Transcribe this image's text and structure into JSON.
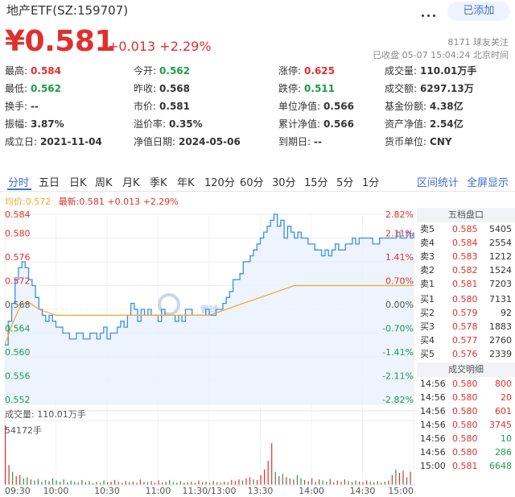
{
  "header": {
    "title": "地产ETF(SZ:159707)",
    "add_label": "已添加",
    "price": "¥0.581",
    "change": "+0.013 +2.29%",
    "followers": "8171 球友关注",
    "status": "已收盘 05-07 15:04:24 北京时间"
  },
  "quotes": [
    [
      {
        "label": "最高:",
        "value": "0.584",
        "color": "red"
      },
      {
        "label": "今开:",
        "value": "0.562",
        "color": "green"
      },
      {
        "label": "涨停:",
        "value": "0.625",
        "color": "red"
      },
      {
        "label": "成交量:",
        "value": "110.01万手",
        "color": ""
      }
    ],
    [
      {
        "label": "最低:",
        "value": "0.562",
        "color": "green"
      },
      {
        "label": "昨收:",
        "value": "0.568",
        "color": ""
      },
      {
        "label": "跌停:",
        "value": "0.511",
        "color": "green"
      },
      {
        "label": "成交额:",
        "value": "6297.13万",
        "color": ""
      }
    ],
    [
      {
        "label": "换手:",
        "value": "--",
        "color": ""
      },
      {
        "label": "市价:",
        "value": "0.581",
        "color": ""
      },
      {
        "label": "单位净值:",
        "value": "0.566",
        "color": ""
      },
      {
        "label": "基金份额:",
        "value": "4.38亿",
        "color": ""
      }
    ],
    [
      {
        "label": "振幅:",
        "value": "3.87%",
        "color": ""
      },
      {
        "label": "溢价率:",
        "value": "0.35%",
        "color": ""
      },
      {
        "label": "累计净值:",
        "value": "0.566",
        "color": ""
      },
      {
        "label": "资产净值:",
        "value": "2.54亿",
        "color": ""
      }
    ],
    [
      {
        "label": "成立日:",
        "value": "2021-11-04",
        "color": ""
      },
      {
        "label": "净值日期:",
        "value": "2024-05-06",
        "color": ""
      },
      {
        "label": "到期日:",
        "value": "--",
        "color": ""
      },
      {
        "label": "货币单位:",
        "value": "CNY",
        "color": ""
      }
    ]
  ],
  "tabs": [
    "分时",
    "五日",
    "日K",
    "周K",
    "月K",
    "季K",
    "年K",
    "120分",
    "60分",
    "30分",
    "15分",
    "5分",
    "1分"
  ],
  "tab_active": "分时",
  "tab_right": [
    "区间统计",
    "全屏显示"
  ],
  "legend": {
    "avg": "均价:0.572",
    "latest": "最新:0.581 +0.013 +2.29%"
  },
  "volume_label": "成交量: 110.01万手",
  "volume_max_label": "54172手",
  "watermark": "雪球",
  "orderbook": {
    "title": "五档盘口",
    "asks": [
      {
        "label": "卖5",
        "price": "0.585",
        "vol": "5405"
      },
      {
        "label": "卖4",
        "price": "0.584",
        "vol": "2554"
      },
      {
        "label": "卖3",
        "price": "0.583",
        "vol": "1212"
      },
      {
        "label": "卖2",
        "price": "0.582",
        "vol": "1524"
      },
      {
        "label": "卖1",
        "price": "0.581",
        "vol": "7203"
      }
    ],
    "bids": [
      {
        "label": "买1",
        "price": "0.580",
        "vol": "7131"
      },
      {
        "label": "买2",
        "price": "0.579",
        "vol": "92"
      },
      {
        "label": "买3",
        "price": "0.578",
        "vol": "1883"
      },
      {
        "label": "买4",
        "price": "0.577",
        "vol": "2760"
      },
      {
        "label": "买5",
        "price": "0.576",
        "vol": "2339"
      }
    ],
    "trades_title": "成交明细",
    "trades": [
      {
        "time": "14:56",
        "price": "0.580",
        "vol": "800",
        "color": "red"
      },
      {
        "time": "14:56",
        "price": "0.580",
        "vol": "20",
        "color": "red"
      },
      {
        "time": "14:56",
        "price": "0.580",
        "vol": "601",
        "color": "red"
      },
      {
        "time": "14:56",
        "price": "0.580",
        "vol": "3745",
        "color": "red"
      },
      {
        "time": "14:56",
        "price": "0.580",
        "vol": "10",
        "color": "green"
      },
      {
        "time": "14:56",
        "price": "0.580",
        "vol": "286",
        "color": "green"
      },
      {
        "time": "15:00",
        "price": "0.581",
        "vol": "6648",
        "color": "green"
      }
    ]
  },
  "colors": {
    "up": "#e0302e",
    "down": "#1e9a4a",
    "price_line": "#3d8de8",
    "avg_line": "#f5a623",
    "accent": "#3e6fd6"
  },
  "chart_data": {
    "type": "line",
    "y_left_ticks": [
      "0.584",
      "0.580",
      "0.576",
      "0.572",
      "0.568",
      "0.564",
      "0.560",
      "0.556",
      "0.552"
    ],
    "y_right_ticks": [
      "2.82%",
      "2.11%",
      "1.41%",
      "0.70%",
      "0.00%",
      "-0.70%",
      "-1.41%",
      "-2.11%",
      "-2.82%"
    ],
    "ylim": [
      0.552,
      0.584
    ],
    "prev_close": 0.568,
    "x_ticks": [
      "09:30",
      "10:00",
      "10:30",
      "11:00",
      "11:30/13:00",
      "13:30",
      "14:00",
      "14:30",
      "15:00"
    ],
    "series": [
      {
        "name": "最新",
        "x": [
          0,
          2,
          4,
          6,
          8,
          10,
          12,
          14,
          16,
          18,
          20,
          22,
          24,
          26,
          28,
          30,
          34,
          38,
          42,
          46,
          50,
          54,
          56,
          58,
          60,
          62,
          64,
          66,
          68,
          70,
          72,
          74,
          76,
          78,
          80,
          82,
          84,
          86,
          88,
          90,
          92,
          94,
          96,
          98,
          100,
          102,
          104,
          106,
          108,
          110,
          112,
          114,
          116,
          118,
          120,
          122,
          124,
          126,
          128,
          130,
          132,
          134,
          136,
          138,
          140,
          142,
          144,
          146,
          148,
          150,
          152,
          154,
          156,
          158,
          160,
          162,
          164,
          166,
          168,
          170,
          172,
          174,
          176,
          178,
          180,
          182,
          184,
          186,
          188,
          190,
          192,
          194,
          196,
          198,
          200,
          202,
          204,
          206,
          208,
          210,
          212,
          214,
          216,
          218,
          220,
          222,
          224,
          226,
          228,
          230,
          232,
          234,
          236,
          238,
          240
        ],
        "values": [
          0.562,
          0.566,
          0.569,
          0.573,
          0.575,
          0.576,
          0.575,
          0.573,
          0.572,
          0.57,
          0.568,
          0.567,
          0.566,
          0.567,
          0.566,
          0.565,
          0.564,
          0.563,
          0.564,
          0.563,
          0.564,
          0.563,
          0.564,
          0.565,
          0.563,
          0.564,
          0.564,
          0.565,
          0.566,
          0.565,
          0.567,
          0.569,
          0.568,
          0.566,
          0.568,
          0.567,
          0.568,
          0.567,
          0.567,
          0.566,
          0.568,
          0.567,
          0.567,
          0.567,
          0.566,
          0.567,
          0.566,
          0.568,
          0.568,
          0.567,
          0.567,
          0.567,
          0.567,
          0.568,
          0.567,
          0.567,
          0.568,
          0.568,
          0.569,
          0.57,
          0.571,
          0.573,
          0.573,
          0.574,
          0.576,
          0.576,
          0.577,
          0.578,
          0.579,
          0.58,
          0.581,
          0.582,
          0.583,
          0.584,
          0.582,
          0.583,
          0.58,
          0.582,
          0.581,
          0.58,
          0.581,
          0.58,
          0.58,
          0.579,
          0.579,
          0.578,
          0.578,
          0.577,
          0.578,
          0.577,
          0.578,
          0.579,
          0.578,
          0.578,
          0.579,
          0.579,
          0.58,
          0.579,
          0.58,
          0.58,
          0.58,
          0.58,
          0.579,
          0.579,
          0.58,
          0.58,
          0.58,
          0.58,
          0.58,
          0.581,
          0.58,
          0.58,
          0.581,
          0.58,
          0.581
        ]
      },
      {
        "name": "均价",
        "x": [
          0,
          5,
          10,
          15,
          20,
          30,
          60,
          90,
          120,
          130,
          140,
          150,
          160,
          170,
          180,
          190,
          200,
          210,
          220,
          230,
          240
        ],
        "values": [
          0.562,
          0.566,
          0.569,
          0.569,
          0.568,
          0.567,
          0.567,
          0.567,
          0.567,
          0.568,
          0.569,
          0.57,
          0.571,
          0.572,
          0.572,
          0.572,
          0.572,
          0.572,
          0.572,
          0.572,
          0.572
        ]
      }
    ],
    "volume": {
      "bars": [
        54172,
        18000,
        12000,
        8000,
        9000,
        6000,
        7000,
        5000,
        4000,
        5500,
        3000,
        4500,
        3500,
        6000,
        4000,
        3000,
        5000,
        2500,
        4000,
        3000,
        2000,
        4500,
        2500,
        3500,
        1500,
        3000,
        2000,
        4000,
        2500,
        3000,
        4500,
        3000,
        2000,
        3500,
        2500,
        3000,
        2000,
        5000,
        3000,
        2500,
        3500,
        2000,
        4000,
        2500,
        3000,
        4500,
        2500,
        2000,
        3500,
        2000,
        2500,
        3000,
        2000,
        4000,
        2500,
        3000,
        2000,
        3500,
        2500,
        2000,
        3000,
        2500,
        4500,
        3500,
        5000,
        4000,
        6000,
        7000,
        5000,
        4500,
        9000,
        14000,
        22000,
        38000,
        12000,
        8000,
        10000,
        7000,
        6000,
        5000,
        9000,
        6000,
        4500,
        3500,
        6000,
        3000,
        5000,
        4000,
        3000,
        5500,
        2500,
        4000,
        3000,
        5000,
        3500,
        2500,
        4000,
        3000,
        2500,
        4000,
        3000,
        2500,
        3500,
        2000,
        3000,
        4000,
        9000,
        14000,
        11000,
        13000,
        7000,
        12000
      ],
      "up": [
        1,
        1,
        0,
        1,
        1,
        0,
        0,
        1,
        0,
        0,
        1,
        0,
        1,
        0,
        0,
        1,
        0,
        1,
        0,
        0,
        1,
        0,
        1,
        0,
        1,
        0,
        1,
        0,
        0,
        1,
        1,
        0,
        0,
        1,
        0,
        1,
        0,
        1,
        0,
        0,
        1,
        0,
        1,
        0,
        1,
        0,
        0,
        1,
        0,
        1,
        0,
        1,
        0,
        1,
        0,
        1,
        0,
        1,
        0,
        1,
        1,
        0,
        1,
        1,
        1,
        0,
        1,
        1,
        0,
        1,
        1,
        1,
        1,
        1,
        0,
        1,
        0,
        1,
        0,
        1,
        0,
        0,
        1,
        0,
        1,
        0,
        1,
        0,
        0,
        1,
        0,
        1,
        0,
        1,
        0,
        1,
        0,
        1,
        0,
        1,
        0,
        1,
        0,
        1,
        0,
        1,
        1,
        0,
        1,
        1,
        0,
        1
      ]
    }
  }
}
